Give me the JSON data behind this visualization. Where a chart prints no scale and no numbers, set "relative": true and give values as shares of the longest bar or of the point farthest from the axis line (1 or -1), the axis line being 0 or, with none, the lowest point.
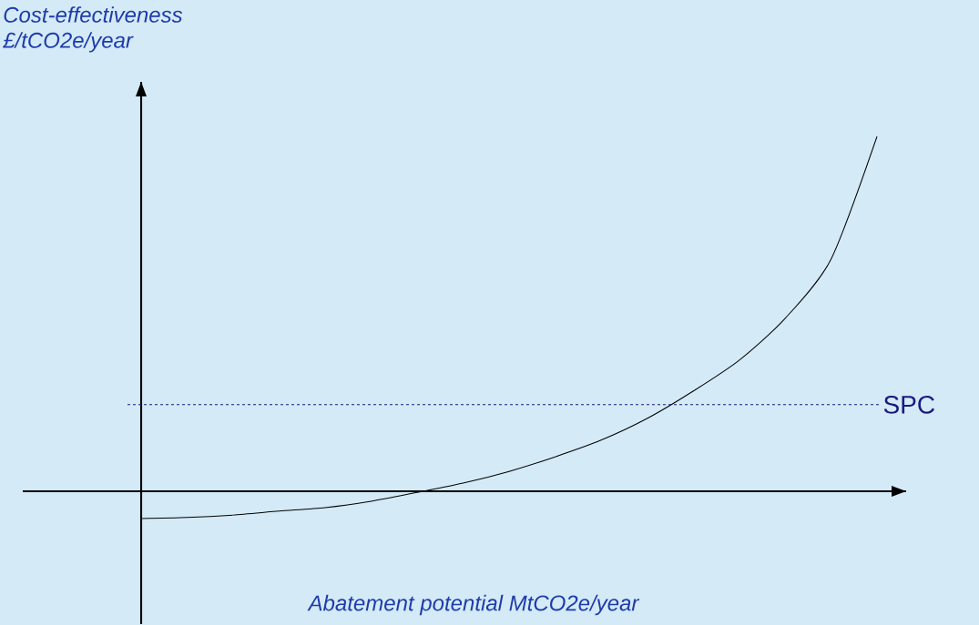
{
  "chart_data": {
    "type": "line",
    "relative": true,
    "xlabel": "Abatement potential MtCO2e/year",
    "ylabel": "Cost-effectiveness £/tCO2e/year",
    "categories": [
      null,
      null,
      null,
      null,
      null,
      null,
      null,
      null,
      null,
      null,
      null,
      null,
      null,
      null,
      null,
      null,
      null
    ],
    "series": [
      {
        "color": "#000000",
        "values": [
          -0.077,
          -0.074,
          -0.067,
          -0.056,
          -0.046,
          -0.028,
          -0.003,
          0.023,
          0.056,
          0.097,
          0.144,
          0.205,
          0.282,
          0.369,
          0.487,
          0.654,
          1
        ]
      }
    ],
    "line_style": "solid",
    "marker": "none",
    "ref_lines": [
      {
        "axis": "y",
        "value": 0.244,
        "label": "SPC",
        "color": "#1a1a80",
        "line_style": "dashed"
      }
    ]
  }
}
